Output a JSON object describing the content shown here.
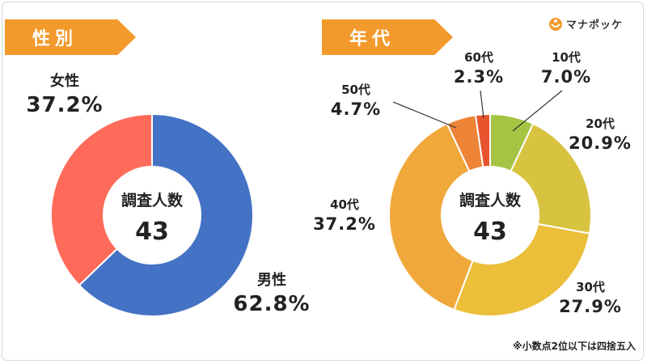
{
  "brand": {
    "logo_text": "マナポッケ"
  },
  "sections": {
    "gender_title": "性別",
    "age_title": "年代"
  },
  "footnote": "※小数点2位以下は四捨五入",
  "colors": {
    "banner": "#f39a2c",
    "male": "#4472c4",
    "female": "#ff6b5a",
    "age_10": "#a6c443",
    "age_20": "#d8c341",
    "age_30": "#ebbf3a",
    "age_40": "#f0a83b",
    "age_50": "#ee8436",
    "age_60": "#e8542d"
  },
  "chart_data": [
    {
      "type": "pie",
      "title": "性別",
      "center_label": "調査人数",
      "center_value": "43",
      "categories": [
        "男性",
        "女性"
      ],
      "values": [
        62.8,
        37.2
      ],
      "value_labels": [
        "62.8%",
        "37.2%"
      ]
    },
    {
      "type": "pie",
      "title": "年代",
      "center_label": "調査人数",
      "center_value": "43",
      "categories": [
        "10代",
        "20代",
        "30代",
        "40代",
        "50代",
        "60代"
      ],
      "values": [
        7.0,
        20.9,
        27.9,
        37.2,
        4.7,
        2.3
      ],
      "value_labels": [
        "7.0%",
        "20.9%",
        "27.9%",
        "37.2%",
        "4.7%",
        "2.3%"
      ]
    }
  ]
}
